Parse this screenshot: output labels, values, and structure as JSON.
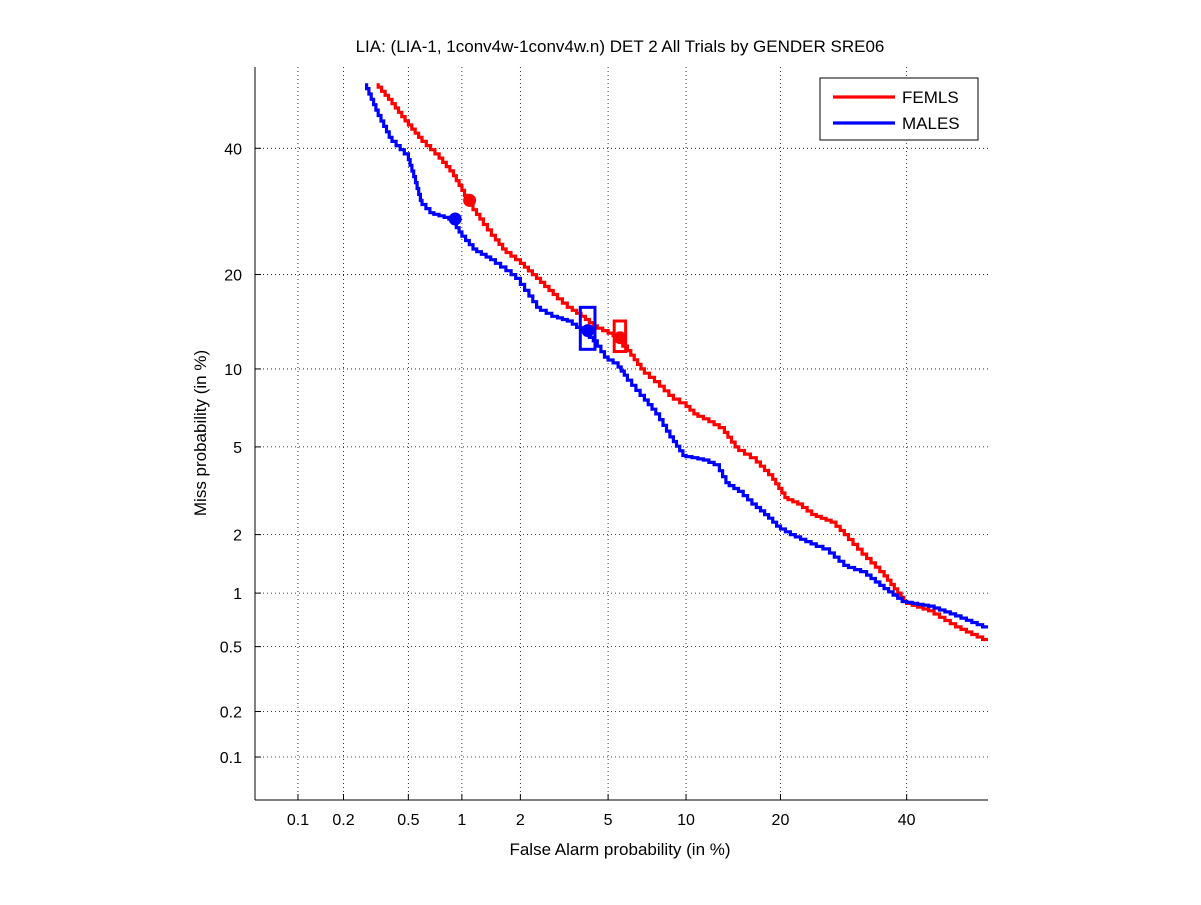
{
  "chart_data": {
    "type": "line",
    "title": "LIA: (LIA-1, 1conv4w-1conv4w.n) DET 2 All Trials by GENDER SRE06",
    "xlabel": "False Alarm probability (in %)",
    "ylabel": "Miss probability (in %)",
    "x_scale": "normal-deviate (probit)",
    "y_scale": "normal-deviate (probit)",
    "xlim": [
      0.05,
      55
    ],
    "ylim": [
      0.05,
      55
    ],
    "x_ticks": [
      0.1,
      0.2,
      0.5,
      1,
      2,
      5,
      10,
      20,
      40
    ],
    "x_tick_labels": [
      "0.1",
      "0.2",
      "0.5",
      "1",
      "2",
      "5",
      "10",
      "20",
      "40"
    ],
    "y_ticks": [
      0.1,
      0.2,
      0.5,
      1,
      2,
      5,
      10,
      20,
      40
    ],
    "y_tick_labels": [
      "0.1",
      "0.2",
      "0.5",
      "1",
      "2",
      "5",
      "10",
      "20",
      "40"
    ],
    "grid": true,
    "legend_position": "top-right",
    "series": [
      {
        "name": "FEMLS",
        "color": "#ff0000",
        "x": [
          0.33,
          0.4,
          0.5,
          0.6,
          0.75,
          0.9,
          1.0,
          1.1,
          1.3,
          1.5,
          1.7,
          2.0,
          2.5,
          3.0,
          3.5,
          4.0,
          4.5,
          5.0,
          5.5,
          6.0,
          7.0,
          8.0,
          9.0,
          10.0,
          11.0,
          12.0,
          13.5,
          15.0,
          17.0,
          19.0,
          21.0,
          23.0,
          25.0,
          28.0,
          30.0,
          33.0,
          36.0,
          39.0,
          40.0,
          45.0,
          50.0,
          55.0
        ],
        "y": [
          52.0,
          49.0,
          45.0,
          42.0,
          39.0,
          36.0,
          33.5,
          31.0,
          28.0,
          25.5,
          23.5,
          22.0,
          19.5,
          17.5,
          16.0,
          15.0,
          14.0,
          13.5,
          13.0,
          12.0,
          10.0,
          9.0,
          8.0,
          7.5,
          6.8,
          6.5,
          6.0,
          5.0,
          4.5,
          3.8,
          3.0,
          2.8,
          2.5,
          2.3,
          2.0,
          1.6,
          1.3,
          1.0,
          0.9,
          0.8,
          0.65,
          0.55
        ]
      },
      {
        "name": "MALES",
        "color": "#0000ff",
        "x": [
          0.28,
          0.33,
          0.4,
          0.5,
          0.55,
          0.6,
          0.7,
          0.8,
          0.9,
          1.0,
          1.2,
          1.5,
          1.8,
          2.0,
          2.2,
          2.5,
          3.0,
          3.5,
          4.0,
          4.5,
          5.0,
          5.5,
          6.0,
          7.0,
          8.0,
          9.0,
          10.0,
          11.0,
          12.0,
          13.0,
          14.0,
          15.5,
          17.0,
          18.0,
          19.0,
          20.0,
          22.0,
          25.0,
          27.0,
          30.0,
          33.0,
          36.0,
          40.0,
          45.0,
          50.0,
          55.0
        ],
        "y": [
          52.0,
          47.0,
          42.0,
          39.0,
          35.0,
          31.0,
          29.0,
          28.5,
          28.0,
          26.0,
          23.5,
          22.0,
          20.5,
          19.5,
          18.0,
          16.0,
          15.0,
          14.5,
          13.5,
          12.5,
          11.0,
          10.5,
          9.5,
          8.0,
          6.8,
          5.5,
          4.6,
          4.5,
          4.4,
          4.2,
          3.5,
          3.2,
          2.8,
          2.6,
          2.4,
          2.2,
          2.0,
          1.8,
          1.7,
          1.4,
          1.3,
          1.1,
          0.9,
          0.85,
          0.75,
          0.65
        ]
      }
    ],
    "markers": [
      {
        "series": "FEMLS",
        "type": "dot",
        "x": 1.1,
        "y": 31.0,
        "color": "#ff0000"
      },
      {
        "series": "MALES",
        "type": "dot",
        "x": 0.92,
        "y": 28.0,
        "color": "#0000ff"
      },
      {
        "series": "MALES",
        "type": "box",
        "x": 4.1,
        "y": 13.5,
        "x_range": [
          3.8,
          4.4
        ],
        "y_range": [
          11.7,
          16.0
        ],
        "color": "#0000ff"
      },
      {
        "series": "MALES",
        "type": "dot",
        "x": 4.1,
        "y": 13.5,
        "color": "#0000ff"
      },
      {
        "series": "FEMLS",
        "type": "box",
        "x": 5.6,
        "y": 12.8,
        "x_range": [
          5.3,
          5.9
        ],
        "y_range": [
          11.5,
          14.5
        ],
        "color": "#ff0000"
      },
      {
        "series": "FEMLS",
        "type": "dot",
        "x": 5.6,
        "y": 12.8,
        "color": "#ff0000"
      }
    ]
  }
}
